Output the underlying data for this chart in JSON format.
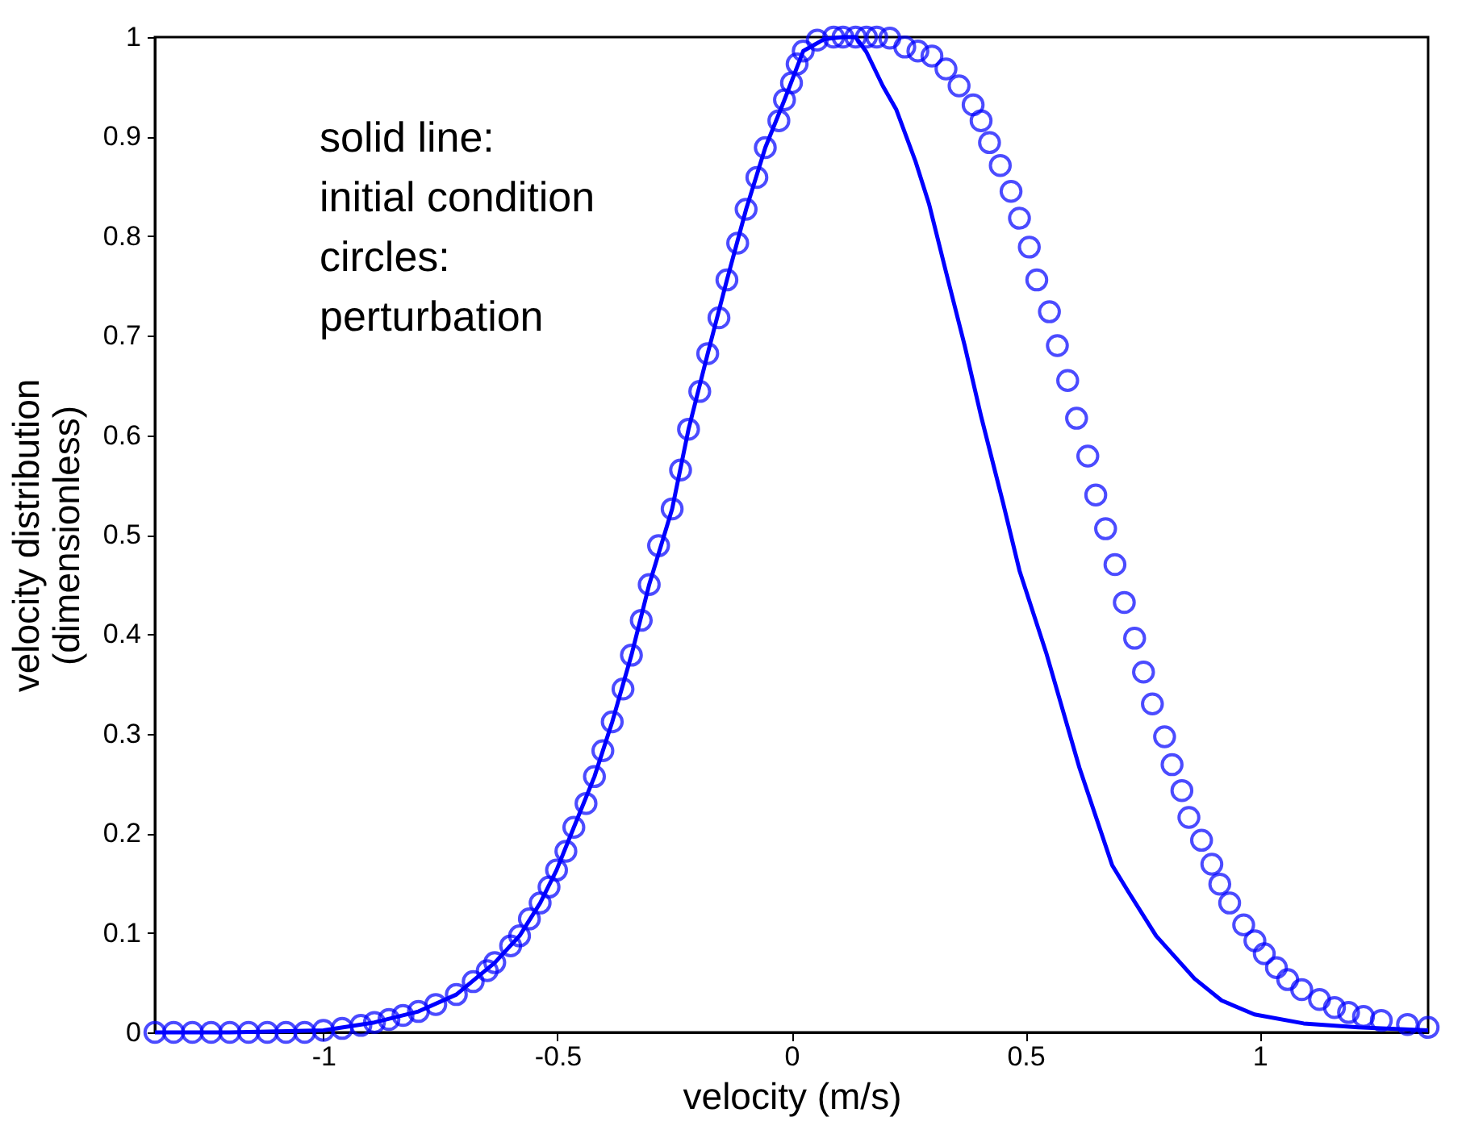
{
  "chart_data": {
    "type": "line",
    "xlabel": "velocity (m/s)",
    "ylabel": "velocity distribution\n(dimensionless)",
    "annotations": [
      "solid  line:\ninitial condition\ncircles:\nperturbation"
    ],
    "xlim": [
      -1.36,
      1.36
    ],
    "xticks": [
      -1,
      -0.5,
      0,
      0.5,
      1
    ],
    "ylim": [
      0,
      1
    ],
    "yticks": [
      0,
      0.1,
      0.2,
      0.3,
      0.4,
      0.5,
      0.6,
      0.7,
      0.8,
      0.9,
      1
    ],
    "grid": false,
    "series": [
      {
        "color": "#0000ff",
        "marker": "none",
        "line_style": "solid",
        "x": [
          -1.36,
          -1.2,
          -1.0,
          -0.891,
          -0.797,
          -0.716,
          -0.634,
          -0.581,
          -0.537,
          -0.502,
          -0.465,
          -0.421,
          -0.383,
          -0.342,
          -0.304,
          -0.255,
          -0.22,
          -0.179,
          -0.138,
          -0.097,
          -0.056,
          -0.015,
          0.025,
          0.07,
          0.11,
          0.137,
          0.16,
          0.195,
          0.224,
          0.265,
          0.294,
          0.329,
          0.37,
          0.405,
          0.452,
          0.487,
          0.545,
          0.615,
          0.685,
          0.72,
          0.779,
          0.861,
          0.919,
          0.989,
          1.094,
          1.211,
          1.36
        ],
        "values": [
          0,
          0,
          0.002,
          0.01,
          0.021,
          0.038,
          0.07,
          0.097,
          0.13,
          0.163,
          0.206,
          0.257,
          0.312,
          0.379,
          0.45,
          0.526,
          0.606,
          0.682,
          0.756,
          0.827,
          0.889,
          0.937,
          0.986,
          0.998,
          1.0,
          1.0,
          0.985,
          0.951,
          0.927,
          0.875,
          0.832,
          0.766,
          0.69,
          0.619,
          0.532,
          0.464,
          0.38,
          0.266,
          0.168,
          0.141,
          0.097,
          0.054,
          0.032,
          0.018,
          0.009,
          0.005,
          0.002
        ]
      },
      {
        "type": "scatter",
        "color": "#0000ff",
        "marker": "circle",
        "x": [
          -1.36,
          -1.32,
          -1.28,
          -1.24,
          -1.2,
          -1.16,
          -1.12,
          -1.08,
          -1.04,
          -1.0,
          -0.96,
          -0.92,
          -0.891,
          -0.86,
          -0.83,
          -0.797,
          -0.76,
          -0.716,
          -0.68,
          -0.65,
          -0.634,
          -0.6,
          -0.581,
          -0.56,
          -0.537,
          -0.518,
          -0.502,
          -0.482,
          -0.465,
          -0.439,
          -0.421,
          -0.403,
          -0.383,
          -0.36,
          -0.342,
          -0.321,
          -0.304,
          -0.284,
          -0.255,
          -0.237,
          -0.22,
          -0.196,
          -0.179,
          -0.155,
          -0.138,
          -0.115,
          -0.097,
          -0.074,
          -0.056,
          -0.027,
          -0.015,
          0.0,
          0.012,
          0.025,
          0.055,
          0.09,
          0.11,
          0.137,
          0.16,
          0.182,
          0.21,
          0.242,
          0.27,
          0.3,
          0.33,
          0.358,
          0.388,
          0.405,
          0.423,
          0.446,
          0.469,
          0.487,
          0.508,
          0.524,
          0.551,
          0.568,
          0.59,
          0.609,
          0.633,
          0.65,
          0.671,
          0.691,
          0.711,
          0.733,
          0.752,
          0.771,
          0.797,
          0.813,
          0.834,
          0.849,
          0.876,
          0.898,
          0.915,
          0.936,
          0.966,
          0.99,
          1.01,
          1.036,
          1.06,
          1.09,
          1.128,
          1.16,
          1.19,
          1.222,
          1.26,
          1.316,
          1.36
        ],
        "values": [
          0,
          0,
          0,
          0,
          0,
          0,
          0,
          0,
          0,
          0.002,
          0.004,
          0.007,
          0.01,
          0.013,
          0.017,
          0.021,
          0.028,
          0.038,
          0.051,
          0.062,
          0.07,
          0.087,
          0.097,
          0.114,
          0.13,
          0.146,
          0.163,
          0.182,
          0.206,
          0.23,
          0.257,
          0.283,
          0.312,
          0.345,
          0.379,
          0.414,
          0.45,
          0.489,
          0.526,
          0.565,
          0.606,
          0.644,
          0.682,
          0.718,
          0.756,
          0.793,
          0.827,
          0.859,
          0.889,
          0.916,
          0.937,
          0.954,
          0.973,
          0.986,
          0.997,
          1.0,
          1.0,
          1.0,
          1.0,
          1.0,
          0.999,
          0.99,
          0.986,
          0.981,
          0.968,
          0.951,
          0.932,
          0.916,
          0.894,
          0.871,
          0.845,
          0.818,
          0.789,
          0.756,
          0.724,
          0.69,
          0.655,
          0.617,
          0.579,
          0.54,
          0.506,
          0.47,
          0.432,
          0.396,
          0.362,
          0.33,
          0.297,
          0.269,
          0.243,
          0.216,
          0.193,
          0.169,
          0.149,
          0.13,
          0.108,
          0.092,
          0.079,
          0.065,
          0.053,
          0.043,
          0.033,
          0.025,
          0.02,
          0.016,
          0.012,
          0.008,
          0.005
        ]
      }
    ]
  }
}
